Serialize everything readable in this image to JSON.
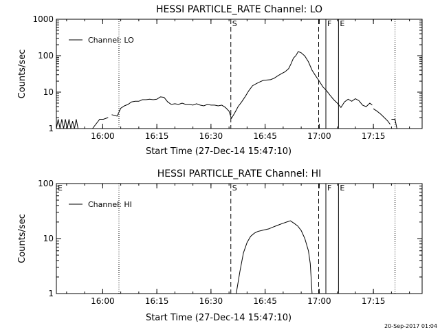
{
  "footer_date": "20-Sep-2017 01:04",
  "chart_data": [
    {
      "type": "line",
      "title": "HESSI PARTICLE_RATE Channel: LO",
      "xlabel": "Start Time (27-Dec-14 15:47:10)",
      "ylabel": "Counts/sec",
      "scale_y": "log",
      "xlim": [
        "15:47:10",
        "17:28:30"
      ],
      "ylim": [
        1,
        1000
      ],
      "x_ticks": [
        "16:00",
        "16:15",
        "16:30",
        "16:45",
        "17:00",
        "17:15"
      ],
      "y_ticks": [
        "1",
        "10",
        "100",
        "1000"
      ],
      "legend": {
        "position": "top-left",
        "label": "Channel: LO"
      },
      "markers": [
        {
          "time": "16:04:30",
          "style": "dotted",
          "label": ""
        },
        {
          "time": "16:35:30",
          "style": "dashed",
          "label": "S"
        },
        {
          "time": "16:59:50",
          "style": "dashed",
          "label": ""
        },
        {
          "time": "17:01:50",
          "style": "solid",
          "label": "F"
        },
        {
          "time": "17:05:20",
          "style": "solid",
          "label": "E"
        },
        {
          "time": "17:21:00",
          "style": "dotted",
          "label": ""
        }
      ],
      "series": [
        {
          "name": "Channel: LO",
          "segments": [
            {
              "t": [
                "15:47:10",
                "15:47:40",
                "15:48:10",
                "15:48:40",
                "15:49:10",
                "15:49:40",
                "15:50:10",
                "15:50:40",
                "15:51:10",
                "15:51:40",
                "15:52:10",
                "15:52:40",
                "15:53:10"
              ],
              "y": [
                1,
                1.8,
                1,
                1.8,
                1,
                1.8,
                1,
                1.8,
                1,
                1.6,
                1,
                1.8,
                1
              ]
            },
            {
              "t": [
                "15:57:10",
                "15:59:10",
                "16:00:10",
                "16:01:30"
              ],
              "y": [
                1,
                1.8,
                1.8,
                2.0
              ]
            },
            {
              "t": [
                "16:02:30",
                "16:04:00",
                "16:05:00",
                "16:06:00",
                "16:07:00",
                "16:08:00",
                "16:09:00",
                "16:10:00",
                "16:11:00",
                "16:12:00",
                "16:13:00",
                "16:14:00",
                "16:15:00",
                "16:16:00",
                "16:17:00",
                "16:18:00",
                "16:19:00",
                "16:20:00",
                "16:21:00",
                "16:22:00",
                "16:23:00",
                "16:24:00",
                "16:25:00",
                "16:26:00",
                "16:27:00",
                "16:28:00",
                "16:29:00",
                "16:30:00",
                "16:31:00",
                "16:32:00",
                "16:33:00",
                "16:34:00",
                "16:35:00",
                "16:35:40",
                "16:36:30",
                "16:37:30",
                "16:38:30",
                "16:39:30",
                "16:40:30",
                "16:41:30",
                "16:42:30",
                "16:43:30",
                "16:44:30",
                "16:45:30",
                "16:46:30",
                "16:47:30",
                "16:48:30",
                "16:49:30",
                "16:50:30",
                "16:51:30",
                "16:52:10",
                "16:52:50",
                "16:53:30",
                "16:54:10",
                "16:55:00",
                "16:56:00",
                "16:57:00",
                "16:58:00",
                "16:59:00",
                "17:00:00",
                "17:01:00",
                "17:02:00",
                "17:03:00",
                "17:04:00",
                "17:05:00",
                "17:06:00",
                "17:07:00",
                "17:08:00",
                "17:09:00",
                "17:10:00",
                "17:11:00",
                "17:12:00",
                "17:13:00",
                "17:14:00",
                "17:14:40"
              ],
              "y": [
                2.4,
                2.2,
                3.6,
                4.2,
                4.6,
                5.4,
                5.6,
                5.6,
                6.2,
                6.2,
                6.4,
                6.2,
                6.4,
                7.4,
                7.2,
                5.4,
                4.6,
                4.8,
                4.6,
                5.0,
                4.6,
                4.6,
                4.4,
                4.8,
                4.4,
                4.2,
                4.6,
                4.4,
                4.4,
                4.2,
                4.4,
                3.8,
                3.0,
                1.9,
                2.6,
                4.0,
                5.4,
                7.6,
                11,
                15,
                17,
                19,
                21,
                21.5,
                22,
                24,
                28,
                32,
                36,
                44,
                60,
                86,
                100,
                130,
                120,
                98,
                68,
                40,
                28,
                20,
                14,
                11,
                8.2,
                6.2,
                5.0,
                3.8,
                5.4,
                6.4,
                5.6,
                6.6,
                5.8,
                4.4,
                4.0,
                5.0,
                4.4
              ]
            },
            {
              "t": [
                "17:15:00",
                "17:16:00",
                "17:17:00",
                "17:18:00",
                "17:19:00",
                "17:19:40"
              ],
              "y": [
                3.5,
                3.0,
                2.5,
                2.0,
                1.6,
                1.3
              ]
            },
            {
              "t": [
                "17:20:00",
                "17:21:00",
                "17:21:30"
              ],
              "y": [
                1.8,
                1.8,
                1
              ]
            }
          ]
        }
      ]
    },
    {
      "type": "line",
      "title": "HESSI PARTICLE_RATE Channel: HI",
      "xlabel": "Start Time (27-Dec-14 15:47:10)",
      "ylabel": "Counts/sec",
      "scale_y": "log",
      "xlim": [
        "15:47:10",
        "17:28:30"
      ],
      "ylim": [
        1,
        100
      ],
      "x_ticks": [
        "16:00",
        "16:15",
        "16:30",
        "16:45",
        "17:00",
        "17:15"
      ],
      "y_ticks": [
        "1",
        "10",
        "100"
      ],
      "legend": {
        "position": "top-left",
        "label": "Channel: HI"
      },
      "markers": [
        {
          "time": "15:47:10",
          "style": "none",
          "label": "E"
        },
        {
          "time": "16:04:30",
          "style": "dotted",
          "label": ""
        },
        {
          "time": "16:35:30",
          "style": "dashed",
          "label": "S"
        },
        {
          "time": "16:59:50",
          "style": "dashed",
          "label": ""
        },
        {
          "time": "17:01:50",
          "style": "solid",
          "label": "F"
        },
        {
          "time": "17:05:20",
          "style": "solid",
          "label": "E"
        },
        {
          "time": "17:21:00",
          "style": "dotted",
          "label": ""
        }
      ],
      "series": [
        {
          "name": "Channel: HI",
          "segments": [
            {
              "t": [
                "16:37:00",
                "16:38:00",
                "16:39:00",
                "16:40:00",
                "16:41:00",
                "16:42:00",
                "16:43:00",
                "16:44:00",
                "16:45:00",
                "16:46:00",
                "16:47:00",
                "16:48:00",
                "16:49:00",
                "16:50:00",
                "16:51:00",
                "16:52:00",
                "16:53:00",
                "16:54:00",
                "16:55:00",
                "16:56:00",
                "16:57:00",
                "16:57:30",
                "16:58:00"
              ],
              "y": [
                1,
                2.5,
                5.5,
                8.5,
                11,
                12.5,
                13.5,
                14,
                14.5,
                15,
                16,
                17,
                18,
                19,
                20,
                21,
                19,
                17,
                14,
                10,
                6,
                3.5,
                1
              ]
            }
          ]
        }
      ]
    }
  ]
}
